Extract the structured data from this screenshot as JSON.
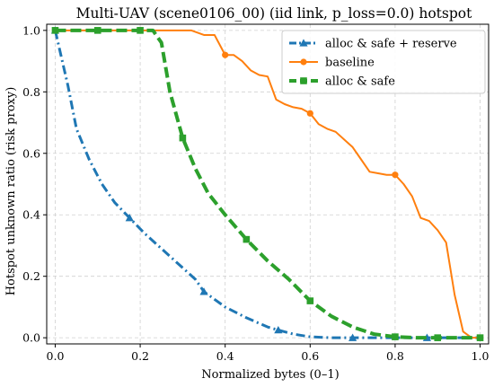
{
  "chart_data": {
    "type": "line",
    "title": "Multi-UAV (scene0106_00) (iid link, p_loss=0.0) hotspot",
    "xlabel": "Normalized bytes (0–1)",
    "ylabel": "Hotspot unknown ratio (risk proxy)",
    "xlim": [
      -0.02,
      1.02
    ],
    "ylim": [
      -0.02,
      1.02
    ],
    "xticks": [
      0.0,
      0.2,
      0.4,
      0.6,
      0.8,
      1.0
    ],
    "yticks": [
      0.0,
      0.2,
      0.4,
      0.6,
      0.8,
      1.0
    ],
    "xtick_labels": [
      "0.0",
      "0.2",
      "0.4",
      "0.6",
      "0.8",
      "1.0"
    ],
    "ytick_labels": [
      "0.0",
      "0.2",
      "0.4",
      "0.6",
      "0.8",
      "1.0"
    ],
    "grid": true,
    "legend_position": "top-right",
    "series": [
      {
        "name": "alloc & safe + reserve",
        "color": "#1f77b4",
        "linestyle": "dashdot",
        "marker": "triangle",
        "x": [
          0.0,
          0.03,
          0.05,
          0.08,
          0.11,
          0.14,
          0.175,
          0.21,
          0.25,
          0.29,
          0.33,
          0.35,
          0.4,
          0.45,
          0.5,
          0.525,
          0.56,
          0.6,
          0.65,
          0.7,
          0.8,
          0.875,
          0.9,
          1.0
        ],
        "y": [
          1.0,
          0.82,
          0.68,
          0.58,
          0.5,
          0.44,
          0.39,
          0.34,
          0.29,
          0.24,
          0.19,
          0.15,
          0.1,
          0.065,
          0.035,
          0.025,
          0.012,
          0.003,
          0.0,
          0.0,
          0.0,
          0.0,
          0.0,
          0.0
        ],
        "marker_x": [
          0.0,
          0.175,
          0.35,
          0.525,
          0.7,
          0.875
        ],
        "marker_y": [
          1.0,
          0.39,
          0.15,
          0.025,
          0.0,
          0.0
        ]
      },
      {
        "name": "baseline",
        "color": "#ff7f0e",
        "linestyle": "solid",
        "marker": "circle",
        "x": [
          0.0,
          0.1,
          0.2,
          0.26,
          0.32,
          0.35,
          0.375,
          0.4,
          0.42,
          0.44,
          0.46,
          0.48,
          0.5,
          0.52,
          0.54,
          0.56,
          0.58,
          0.6,
          0.62,
          0.64,
          0.66,
          0.68,
          0.7,
          0.72,
          0.74,
          0.76,
          0.78,
          0.8,
          0.82,
          0.84,
          0.86,
          0.88,
          0.9,
          0.92,
          0.94,
          0.96,
          0.98,
          1.0
        ],
        "y": [
          1.0,
          1.0,
          1.0,
          1.0,
          1.0,
          0.985,
          0.985,
          0.92,
          0.92,
          0.9,
          0.87,
          0.855,
          0.85,
          0.775,
          0.76,
          0.75,
          0.745,
          0.73,
          0.695,
          0.68,
          0.67,
          0.645,
          0.62,
          0.58,
          0.54,
          0.535,
          0.53,
          0.53,
          0.5,
          0.46,
          0.39,
          0.38,
          0.35,
          0.31,
          0.14,
          0.02,
          0.0,
          0.0
        ],
        "marker_x": [
          0.0,
          0.2,
          0.4,
          0.6,
          0.8,
          1.0
        ],
        "marker_y": [
          1.0,
          1.0,
          0.92,
          0.73,
          0.53,
          0.0
        ]
      },
      {
        "name": "alloc & safe",
        "color": "#2ca02c",
        "linestyle": "dashed",
        "marker": "square",
        "x": [
          0.0,
          0.05,
          0.1,
          0.15,
          0.2,
          0.23,
          0.25,
          0.27,
          0.3,
          0.33,
          0.36,
          0.4,
          0.45,
          0.5,
          0.55,
          0.6,
          0.65,
          0.7,
          0.75,
          0.8,
          0.85,
          0.9,
          1.0
        ],
        "y": [
          1.0,
          1.0,
          1.0,
          1.0,
          1.0,
          1.0,
          0.96,
          0.8,
          0.65,
          0.55,
          0.47,
          0.4,
          0.32,
          0.25,
          0.19,
          0.12,
          0.07,
          0.035,
          0.012,
          0.003,
          0.0,
          0.0,
          0.0
        ],
        "marker_x": [
          0.0,
          0.1,
          0.2,
          0.3,
          0.45,
          0.6,
          0.8,
          0.9,
          1.0
        ],
        "marker_y": [
          1.0,
          1.0,
          1.0,
          0.65,
          0.32,
          0.12,
          0.003,
          0.0,
          0.0
        ]
      }
    ]
  }
}
